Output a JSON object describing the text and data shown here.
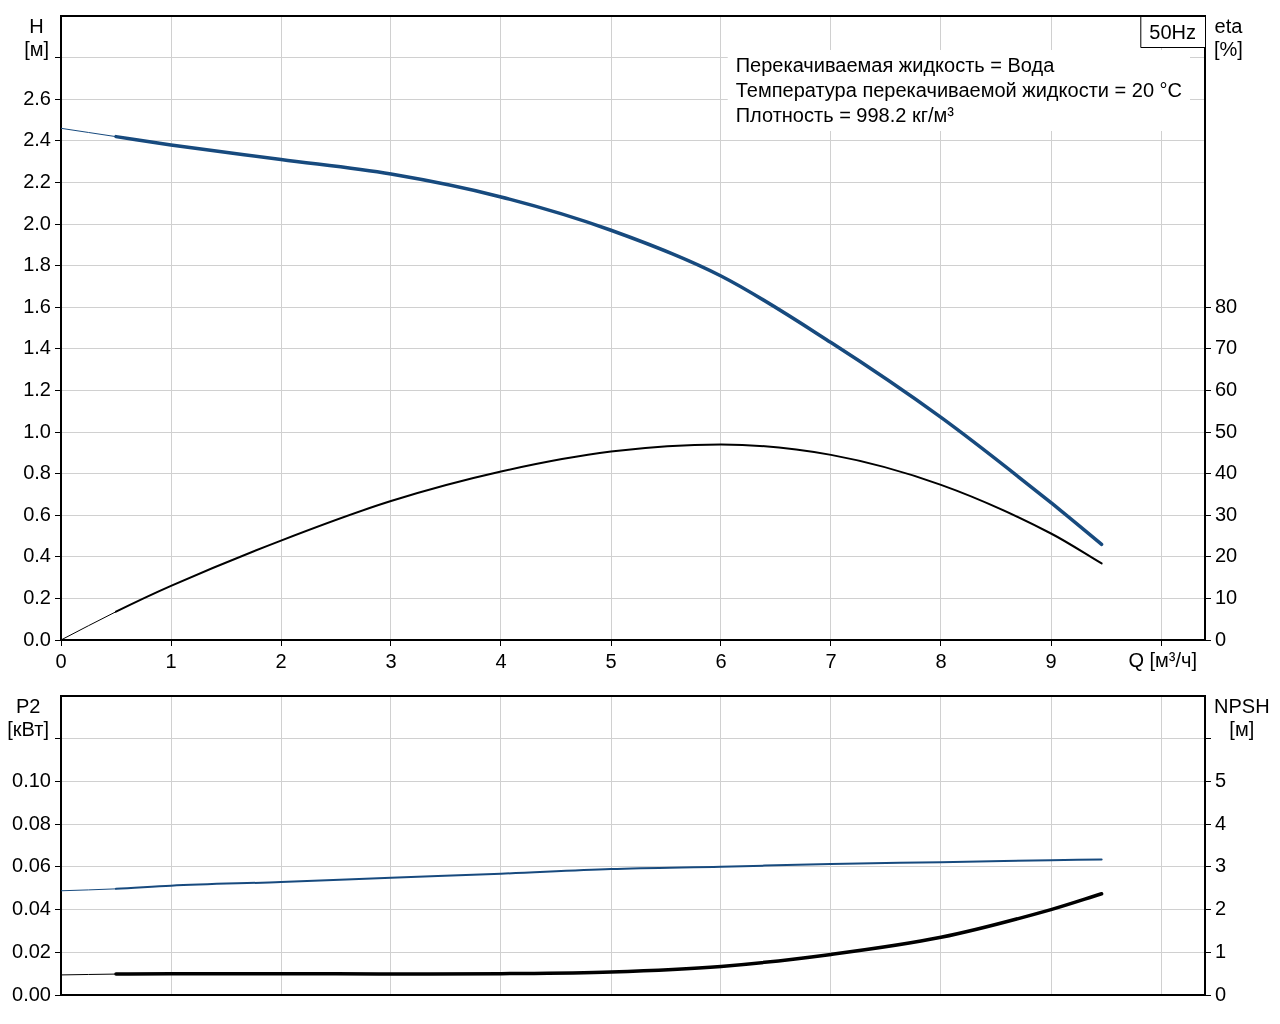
{
  "chart_data": [
    {
      "type": "line",
      "title": "50Hz",
      "xlabel": "Q [м³/ч]",
      "ylabel": "H [м]",
      "y2label": "eta [%]",
      "annotations": [
        "Перекачиваемая жидкость = Вода",
        "Температура перекачиваемой жидкости = 20 °C",
        "Плотность = 998.2 кг/м³"
      ],
      "x": [
        0,
        0.5,
        1,
        2,
        3,
        4,
        5,
        6,
        7,
        8,
        9,
        9.46
      ],
      "series": [
        {
          "color": "#174a7e",
          "values": [
            2.46,
            2.42,
            2.38,
            2.31,
            2.24,
            2.13,
            1.97,
            1.75,
            1.43,
            1.07,
            0.66,
            0.46
          ]
        },
        {
          "color": "#000000",
          "axis": "y2",
          "values": [
            0,
            6.8,
            13,
            23.9,
            33.4,
            40.5,
            45.3,
            47,
            44.5,
            37.3,
            25.6,
            18.4
          ]
        }
      ],
      "xlim": [
        0,
        10.4
      ],
      "xticks": [
        0,
        1,
        2,
        3,
        4,
        5,
        6,
        7,
        8,
        9,
        {
          "value": 10,
          "label": null
        }
      ],
      "ylim": [
        0,
        3
      ],
      "yticks": [
        {
          "value": 0,
          "label": "0.0"
        },
        0.2,
        0.4,
        0.6,
        0.8,
        {
          "value": 1,
          "label": "1.0"
        },
        1.2,
        1.4,
        1.6,
        1.8,
        {
          "value": 2,
          "label": "2.0"
        },
        2.2,
        2.4,
        2.6,
        {
          "value": 2.8,
          "label": null
        }
      ],
      "y2lim": [
        0,
        150
      ],
      "y2ticks": [
        0,
        10,
        20,
        30,
        40,
        50,
        60,
        70,
        80
      ],
      "grid": true
    },
    {
      "type": "line",
      "ylabel": "P2 [кВт]",
      "y2label": "NPSH [м]",
      "x": [
        0,
        0.5,
        1,
        2,
        3,
        4,
        5,
        6,
        7,
        8,
        9,
        9.46
      ],
      "series": [
        {
          "color": "#174a7e",
          "values": [
            0.0488,
            0.0497,
            0.0512,
            0.0529,
            0.0549,
            0.0568,
            0.059,
            0.0601,
            0.0613,
            0.0622,
            0.0631,
            0.0635
          ]
        },
        {
          "color": "#000000",
          "axis": "y2",
          "values": [
            0.47,
            0.49,
            0.5,
            0.5,
            0.49,
            0.5,
            0.54,
            0.67,
            0.95,
            1.35,
            2,
            2.37
          ]
        }
      ],
      "xlim": [
        0,
        10.4
      ],
      "xticks": [
        0,
        1,
        2,
        3,
        4,
        5,
        6,
        7,
        8,
        9,
        10
      ],
      "ylim": [
        0,
        0.14
      ],
      "yticks": [
        {
          "value": 0,
          "label": "0.00"
        },
        0.02,
        0.04,
        0.06,
        0.08,
        {
          "value": 0.1,
          "label": "0.10"
        },
        {
          "value": 0.12,
          "label": null
        }
      ],
      "y2lim": [
        0,
        7
      ],
      "y2ticks": [
        0,
        1,
        2,
        3,
        4,
        5,
        {
          "value": 6,
          "label": null
        }
      ],
      "grid": true,
      "tick_labels": "y"
    }
  ]
}
